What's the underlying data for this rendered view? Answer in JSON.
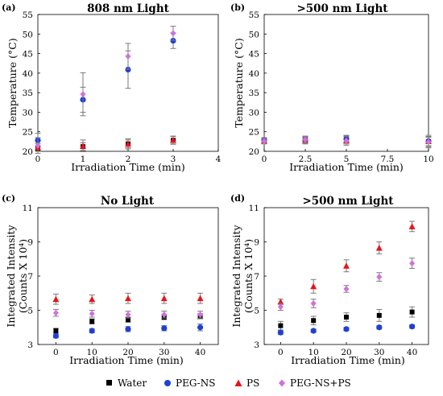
{
  "chart_data": [
    {
      "type": "scatter",
      "panel_label": "(a)",
      "title": "808 nm Light",
      "xlabel": "Irradiation Time (min)",
      "ylabel": "Temperature (°C)",
      "xlim": [
        0,
        4
      ],
      "ylim": [
        20,
        55
      ],
      "xticks": [
        "0",
        "1",
        "2",
        "3",
        "4"
      ],
      "yticks": [
        "20",
        "25",
        "30",
        "35",
        "40",
        "45",
        "50",
        "55"
      ],
      "series": [
        {
          "name": "Water",
          "x": [
            0,
            1,
            2,
            3
          ],
          "y": [
            20.7,
            21.2,
            21.9,
            22.8
          ],
          "err": [
            0.6,
            1.0,
            1.0,
            1.0
          ]
        },
        {
          "name": "PEG-NS",
          "x": [
            0,
            1,
            2,
            3
          ],
          "y": [
            22.8,
            33.2,
            40.9,
            48.3
          ],
          "err": [
            1.8,
            3.2,
            4.8,
            2.0
          ]
        },
        {
          "name": "PS",
          "x": [
            0,
            1,
            2,
            3
          ],
          "y": [
            21.0,
            21.4,
            21.9,
            22.9
          ],
          "err": [
            1.0,
            1.5,
            1.3,
            1.0
          ]
        },
        {
          "name": "PEG-NS+PS",
          "x": [
            0,
            1,
            2,
            3
          ],
          "y": [
            21.5,
            34.6,
            44.3,
            50.2
          ],
          "err": [
            2.0,
            5.5,
            3.3,
            1.8
          ]
        }
      ]
    },
    {
      "type": "scatter",
      "panel_label": "(b)",
      "title": ">500 nm Light",
      "xlabel": "Irradiation Time (min)",
      "ylabel": "Temperature (°C)",
      "xlim": [
        0,
        10
      ],
      "ylim": [
        20,
        55
      ],
      "xticks": [
        "0",
        "2.5",
        "5",
        "7.5",
        "10"
      ],
      "yticks": [
        "20",
        "25",
        "30",
        "35",
        "40",
        "45",
        "50",
        "55"
      ],
      "series": [
        {
          "name": "Water",
          "x": [
            0,
            2.5,
            5,
            10
          ],
          "y": [
            22.6,
            22.8,
            22.9,
            22.5
          ],
          "err": [
            0.6,
            0.8,
            0.9,
            1.6
          ]
        },
        {
          "name": "PEG-NS",
          "x": [
            0,
            2.5,
            5,
            10
          ],
          "y": [
            22.8,
            22.9,
            23.2,
            22.6
          ],
          "err": [
            0.6,
            0.6,
            0.9,
            1.2
          ]
        },
        {
          "name": "PS",
          "x": [
            0,
            2.5,
            5,
            10
          ],
          "y": [
            22.7,
            22.9,
            22.8,
            22.6
          ],
          "err": [
            0.8,
            1.0,
            1.2,
            1.2
          ]
        },
        {
          "name": "PEG-NS+PS",
          "x": [
            0,
            2.5,
            5,
            10
          ],
          "y": [
            22.6,
            23.0,
            22.7,
            22.4
          ],
          "err": [
            0.6,
            0.8,
            1.1,
            1.2
          ]
        }
      ]
    },
    {
      "type": "scatter",
      "panel_label": "(c)",
      "title": "No Light",
      "xlabel": "Irradiation Time (min)",
      "ylabel": "Integrated Intensity (Counts X 10⁴)",
      "xlim": [
        -5,
        45
      ],
      "ylim": [
        3,
        11
      ],
      "xticks": [
        "0",
        "10",
        "20",
        "30",
        "40"
      ],
      "yticks": [
        "3",
        "5",
        "7",
        "9",
        "11"
      ],
      "series": [
        {
          "name": "Water",
          "x": [
            0,
            10,
            20,
            30,
            40
          ],
          "y": [
            3.8,
            4.35,
            4.45,
            4.6,
            4.65
          ],
          "err": [
            0.15,
            0.15,
            0.15,
            0.15,
            0.15
          ]
        },
        {
          "name": "PEG-NS",
          "x": [
            0,
            10,
            20,
            30,
            40
          ],
          "y": [
            3.5,
            3.8,
            3.9,
            3.95,
            4.0
          ],
          "err": [
            0.12,
            0.12,
            0.15,
            0.15,
            0.2
          ]
        },
        {
          "name": "PS",
          "x": [
            0,
            10,
            20,
            30,
            40
          ],
          "y": [
            5.65,
            5.65,
            5.7,
            5.7,
            5.7
          ],
          "err": [
            0.3,
            0.25,
            0.3,
            0.3,
            0.3
          ]
        },
        {
          "name": "PEG-NS+PS",
          "x": [
            0,
            10,
            20,
            30,
            40
          ],
          "y": [
            4.85,
            4.8,
            4.75,
            4.75,
            4.75
          ],
          "err": [
            0.2,
            0.2,
            0.2,
            0.2,
            0.2
          ]
        }
      ]
    },
    {
      "type": "scatter",
      "panel_label": "(d)",
      "title": ">500 nm Light",
      "xlabel": "Irradiation Time (min)",
      "ylabel": "Integrated Intensity (Counts X 10⁴)",
      "xlim": [
        -5,
        45
      ],
      "ylim": [
        3,
        11
      ],
      "xticks": [
        "0",
        "10",
        "20",
        "30",
        "40"
      ],
      "yticks": [
        "3",
        "5",
        "7",
        "9",
        "11"
      ],
      "series": [
        {
          "name": "Water",
          "x": [
            0,
            10,
            20,
            30,
            40
          ],
          "y": [
            4.1,
            4.4,
            4.6,
            4.7,
            4.9
          ],
          "err": [
            0.25,
            0.25,
            0.25,
            0.35,
            0.3
          ]
        },
        {
          "name": "PEG-NS",
          "x": [
            0,
            10,
            20,
            30,
            40
          ],
          "y": [
            3.7,
            3.8,
            3.9,
            4.0,
            4.05
          ],
          "err": [
            0.12,
            0.1,
            0.1,
            0.1,
            0.1
          ]
        },
        {
          "name": "PS",
          "x": [
            0,
            10,
            20,
            30,
            40
          ],
          "y": [
            5.5,
            6.4,
            7.6,
            8.65,
            9.9
          ],
          "err": [
            0.15,
            0.4,
            0.35,
            0.35,
            0.3
          ]
        },
        {
          "name": "PEG-NS+PS",
          "x": [
            0,
            10,
            20,
            30,
            40
          ],
          "y": [
            5.2,
            5.4,
            6.25,
            6.95,
            7.75
          ],
          "err": [
            0.2,
            0.25,
            0.2,
            0.25,
            0.3
          ]
        }
      ]
    }
  ],
  "legend": {
    "placement": "bottom",
    "items": [
      {
        "label": "Water",
        "marker": "square",
        "color": "#000000"
      },
      {
        "label": "PEG-NS",
        "marker": "circle",
        "color": "#1f3fd6"
      },
      {
        "label": "PS",
        "marker": "triangle",
        "color": "#e8131b"
      },
      {
        "label": "PEG-NS+PS",
        "marker": "diamond",
        "color": "#d071dc"
      }
    ]
  },
  "colors": {
    "water": "#000000",
    "peg_ns": "#1f3fd6",
    "ps": "#e8131b",
    "peg_ns_ps": "#d071dc",
    "error_bar": "#7a7a7a"
  }
}
